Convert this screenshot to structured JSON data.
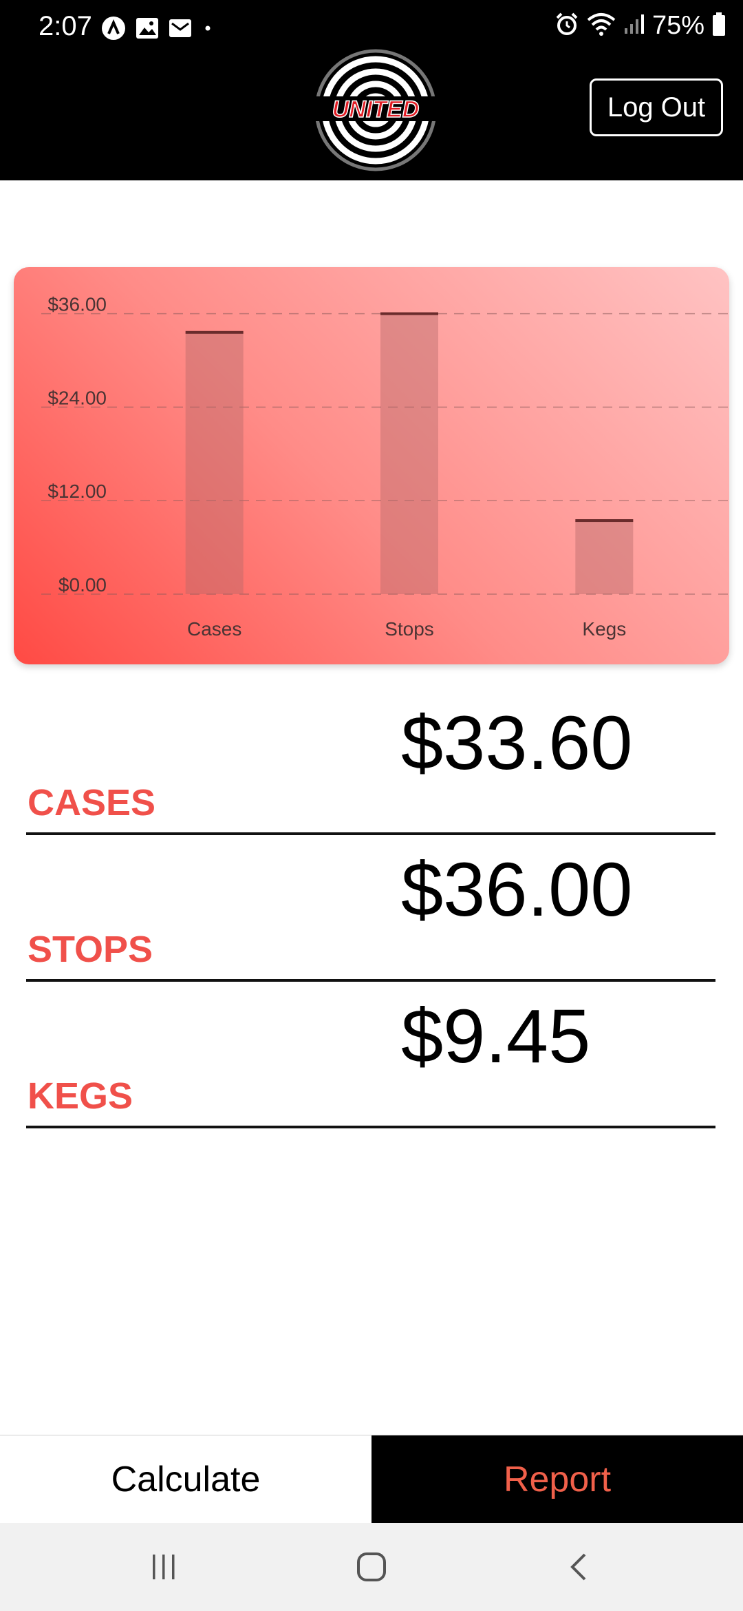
{
  "status_bar": {
    "time": "2:07",
    "battery": "75%",
    "left_icons": [
      "app-a-icon",
      "image-icon",
      "mail-icon",
      "dot-icon"
    ],
    "right_icons": [
      "alarm-icon",
      "wifi-icon",
      "signal-icon",
      "battery-icon"
    ]
  },
  "header": {
    "logo_text": "UNITED",
    "logout_label": "Log Out"
  },
  "chart_data": {
    "type": "bar",
    "categories": [
      "Cases",
      "Stops",
      "Kegs"
    ],
    "values": [
      33.6,
      36.0,
      9.45
    ],
    "y_ticks": [
      "$0.00",
      "$12.00",
      "$24.00",
      "$36.00"
    ],
    "y_tick_values": [
      0,
      12,
      24,
      36
    ],
    "ylim": [
      0,
      38
    ],
    "grid": true,
    "title": "",
    "xlabel": "",
    "ylabel": ""
  },
  "rows": [
    {
      "label": "CASES",
      "value": "$33.60"
    },
    {
      "label": "STOPS",
      "value": "$36.00"
    },
    {
      "label": "KEGS",
      "value": "$9.45"
    }
  ],
  "tabs": {
    "calculate": "Calculate",
    "report": "Report"
  },
  "colors": {
    "accent": "#f0504a",
    "report_tab_text": "#f0604a",
    "header_bg": "#000000"
  },
  "nav": [
    "recent-apps-icon",
    "home-icon",
    "back-icon"
  ]
}
